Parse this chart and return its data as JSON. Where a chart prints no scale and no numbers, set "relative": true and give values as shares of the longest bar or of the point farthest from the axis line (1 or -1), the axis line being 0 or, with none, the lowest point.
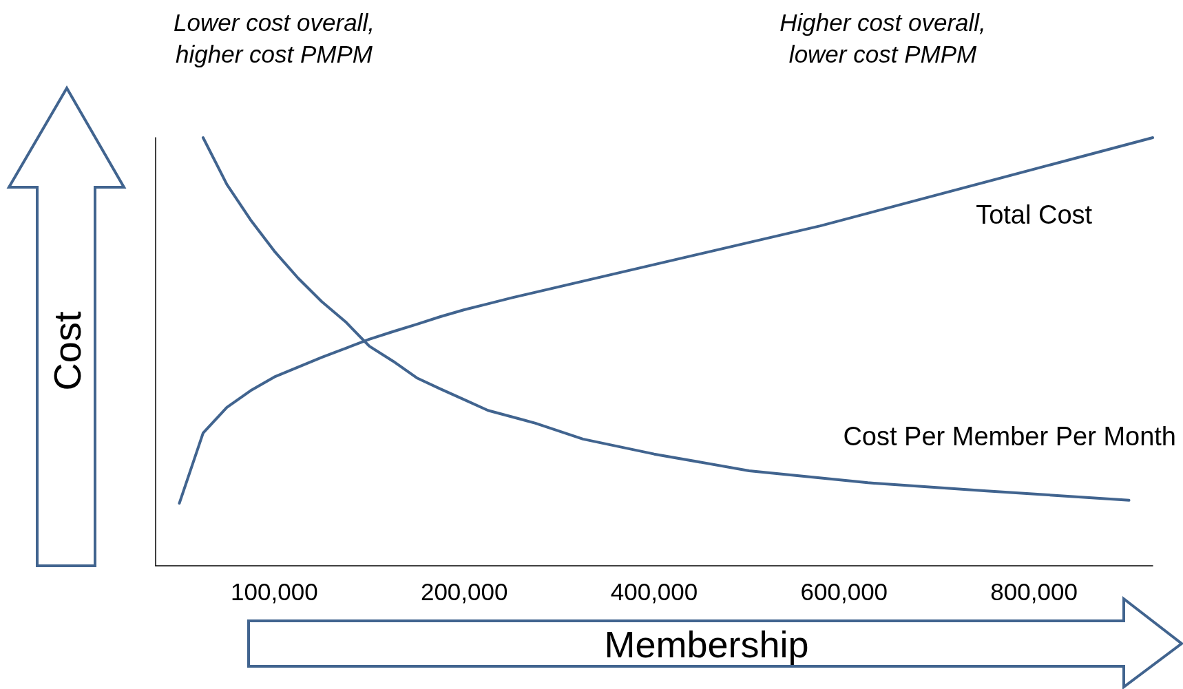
{
  "chart_data": {
    "type": "line",
    "relative": true,
    "xlabel": "Membership",
    "ylabel": "Cost",
    "annotations": [
      "Lower cost overall,\nhigher cost PMPM",
      "Higher cost overall,\nlower cost PMPM"
    ],
    "categories": [
      null,
      null,
      null,
      null,
      null,
      "100,000",
      null,
      null,
      null,
      null,
      null,
      null,
      null,
      "200,000",
      null,
      null,
      null,
      null,
      null,
      null,
      null,
      "400,000",
      null,
      null,
      null,
      null,
      null,
      null,
      null,
      "600,000",
      null,
      null,
      null,
      null,
      null,
      null,
      null,
      "800,000",
      null,
      null,
      null,
      null,
      null
    ],
    "series": [
      {
        "name": "Total Cost",
        "color": "#41648f",
        "values": [
          null,
          0.146,
          0.31,
          0.37,
          0.409,
          0.441,
          0.464,
          0.487,
          0.508,
          0.529,
          0.547,
          0.564,
          0.582,
          0.598,
          0.612,
          0.626,
          null,
          null,
          null,
          null,
          null,
          null,
          null,
          null,
          null,
          null,
          null,
          null,
          0.794,
          null,
          null,
          null,
          null,
          null,
          null,
          null,
          null,
          null,
          null,
          null,
          null,
          null,
          1
        ]
      },
      {
        "name": "Cost Per Member Per Month",
        "color": "#41648f",
        "values": [
          null,
          null,
          1,
          0.891,
          0.808,
          0.735,
          0.672,
          0.617,
          0.57,
          0.513,
          0.478,
          0.439,
          0.413,
          0.388,
          0.363,
          null,
          0.333,
          null,
          0.296,
          null,
          null,
          0.261,
          null,
          null,
          null,
          0.222,
          null,
          null,
          null,
          null,
          0.194,
          null,
          null,
          null,
          null,
          0.175,
          null,
          null,
          null,
          null,
          null,
          0.153,
          null
        ]
      }
    ],
    "grid": false,
    "legend": false,
    "marker": "none",
    "line_style": "solid"
  }
}
